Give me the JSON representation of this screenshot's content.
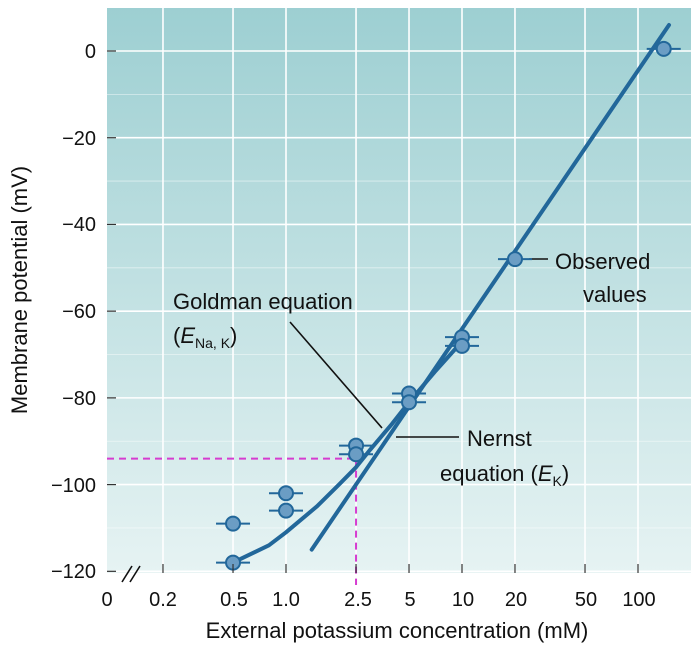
{
  "chart_data": {
    "type": "scatter",
    "title": "",
    "xlabel": "External potassium concentration (mM)",
    "ylabel": "Membrane potential (mV)",
    "x_scale": "log",
    "x_ticks": [
      "0",
      "0.2",
      "0.5",
      "1.0",
      "2.5",
      "5",
      "10",
      "20",
      "50",
      "100"
    ],
    "x_tick_values": [
      null,
      0.2,
      0.5,
      1.0,
      2.5,
      5,
      10,
      20,
      50,
      100
    ],
    "y_ticks": [
      "0",
      "−20",
      "−40",
      "−60",
      "−80",
      "−100",
      "−120"
    ],
    "y_tick_values": [
      0,
      -20,
      -40,
      -60,
      -80,
      -100,
      -120
    ],
    "xlim": [
      0.1,
      150
    ],
    "ylim": [
      -120,
      10
    ],
    "grid": true,
    "axis_break": "//",
    "series": [
      {
        "name": "Observed values",
        "kind": "points",
        "x": [
          0.5,
          0.5,
          1.0,
          1.0,
          2.5,
          2.5,
          5,
          5,
          10,
          10,
          20,
          140
        ],
        "y": [
          -109,
          -118,
          -102,
          -106,
          -91,
          -93,
          -79,
          -81,
          -66,
          -68,
          -48,
          0.5
        ]
      },
      {
        "name": "Goldman equation",
        "kind": "line",
        "x": [
          0.5,
          0.8,
          1.0,
          1.5,
          2.0,
          2.5,
          3.0,
          4.0,
          5.0,
          7.0,
          10.0
        ],
        "y": [
          -118,
          -114,
          -111,
          -105,
          -100,
          -96,
          -92,
          -86,
          -81,
          -74,
          -67
        ]
      },
      {
        "name": "Nernst equation",
        "kind": "line",
        "x": [
          1.4,
          150
        ],
        "y": [
          -115,
          6
        ]
      }
    ],
    "reference_lines": {
      "x": 2.5,
      "y": -94,
      "color": "#d63cd0"
    },
    "annotations": {
      "goldman_line1": "Goldman equation",
      "goldman_open": "(",
      "goldman_E": "E",
      "goldman_sub": "Na, K",
      "goldman_close": ")",
      "nernst_line1": "Nernst",
      "nernst_line2_prefix": "equation (",
      "nernst_E": "E",
      "nernst_sub": "K",
      "nernst_close": ")",
      "observed_line1": "Observed",
      "observed_line2": "values"
    },
    "colors": {
      "line": "#22679a",
      "point_fill": "#6b9dc4",
      "point_stroke": "#22679a",
      "background_top": "#9dcfd2",
      "background_bottom": "#e6f3f3",
      "grid": "#ffffff"
    }
  }
}
